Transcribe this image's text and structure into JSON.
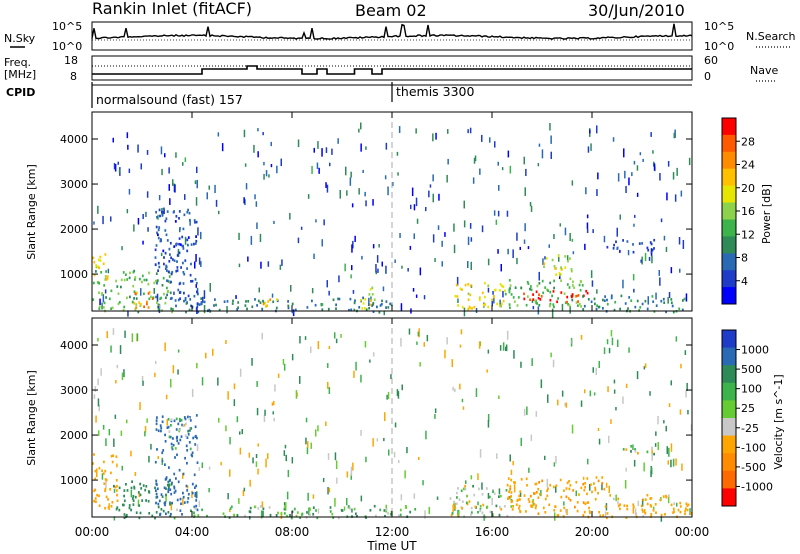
{
  "header": {
    "station": "Rankin Inlet (fitACF)",
    "beam": "Beam 02",
    "date": "30/Jun/2010"
  },
  "panels": {
    "nsky": {
      "label": "N.Sky",
      "left_ticks": [
        "10^5",
        "10^0"
      ],
      "right_ticks": [
        "10^5",
        "10^0"
      ],
      "right_label": "N.Search"
    },
    "freq": {
      "label_line1": "Freq.",
      "label_line2": "[MHz]",
      "left_ticks": [
        "18",
        "8"
      ],
      "right_ticks": [
        "60",
        "0"
      ],
      "right_label": "Nave"
    },
    "cpid": {
      "label": "CPID",
      "segments": [
        {
          "name": "normalsound (fast) 157",
          "start_hour": 0
        },
        {
          "name": "themis 3300",
          "start_hour": 12
        }
      ]
    }
  },
  "chart_data": [
    {
      "type": "heatmap",
      "title": "",
      "quantity": "Power",
      "colorbar_label": "Power [dB]",
      "colorbar_ticks": [
        "28",
        "24",
        "20",
        "16",
        "12",
        "8",
        "4"
      ],
      "colorbar_colors": [
        "#ff0000",
        "#ff5a00",
        "#ff8c00",
        "#ffc000",
        "#e6e600",
        "#8cd24a",
        "#3cb44b",
        "#2e8b57",
        "#2a6ab4",
        "#1e3cc8",
        "#0000ff"
      ],
      "ylabel": "Slant Range [km]",
      "yticks": [
        "1000",
        "2000",
        "3000",
        "4000"
      ],
      "ylim": [
        180,
        4600
      ],
      "xlim": [
        0,
        24
      ],
      "regions": [
        {
          "t0": 0.0,
          "t1": 3.2,
          "r0": 180,
          "r1": 1100,
          "v": 14
        },
        {
          "t0": 0.0,
          "t1": 0.6,
          "r0": 700,
          "r1": 1500,
          "v": 20
        },
        {
          "t0": 1.6,
          "t1": 2.6,
          "r0": 250,
          "r1": 650,
          "v": 24
        },
        {
          "t0": 2.5,
          "t1": 4.2,
          "r0": 250,
          "r1": 2500,
          "v": 6
        },
        {
          "t0": 3.2,
          "t1": 12.0,
          "r0": 180,
          "r1": 500,
          "v": 9
        },
        {
          "t0": 6.8,
          "t1": 7.4,
          "r0": 250,
          "r1": 600,
          "v": 22
        },
        {
          "t0": 10.6,
          "t1": 11.3,
          "r0": 250,
          "r1": 750,
          "v": 18
        },
        {
          "t0": 14.4,
          "t1": 16.5,
          "r0": 250,
          "r1": 850,
          "v": 20
        },
        {
          "t0": 16.5,
          "t1": 19.6,
          "r0": 250,
          "r1": 900,
          "v": 14
        },
        {
          "t0": 17.0,
          "t1": 20.0,
          "r0": 400,
          "r1": 650,
          "v": 29
        },
        {
          "t0": 18.0,
          "t1": 19.2,
          "r0": 900,
          "r1": 1450,
          "v": 18
        },
        {
          "t0": 20.5,
          "t1": 22.5,
          "r0": 1500,
          "r1": 1800,
          "v": 6
        },
        {
          "t0": 19.6,
          "t1": 24.0,
          "r0": 180,
          "r1": 550,
          "v": 10
        }
      ]
    },
    {
      "type": "heatmap",
      "title": "",
      "quantity": "Velocity",
      "colorbar_label": "Velocity [m s^-1]",
      "colorbar_ticks": [
        "1000",
        "500",
        "100",
        "25",
        "-25",
        "-100",
        "-500",
        "-1000"
      ],
      "colorbar_colors": [
        "#1e3cc8",
        "#2a6ab4",
        "#2e8b57",
        "#3cb44b",
        "#66cc33",
        "#c8c8c8",
        "#ffa500",
        "#ff8c00",
        "#ff6a00",
        "#ff0000"
      ],
      "ylabel": "Slant Range [km]",
      "yticks": [
        "1000",
        "2000",
        "3000",
        "4000"
      ],
      "ylim": [
        180,
        4600
      ],
      "xlim": [
        0,
        24
      ],
      "regions": [
        {
          "t0": 0.0,
          "t1": 1.0,
          "r0": 400,
          "r1": 1600,
          "v": -300
        },
        {
          "t0": 0.8,
          "t1": 3.2,
          "r0": 180,
          "r1": 1000,
          "v": 300
        },
        {
          "t0": 2.5,
          "t1": 4.2,
          "r0": 250,
          "r1": 2500,
          "v": 700
        },
        {
          "t0": 3.0,
          "t1": 4.0,
          "r0": 1700,
          "r1": 2400,
          "v": 0
        },
        {
          "t0": 3.2,
          "t1": 13.0,
          "r0": 180,
          "r1": 450,
          "v": 60
        },
        {
          "t0": 14.3,
          "t1": 17.0,
          "r0": 200,
          "r1": 900,
          "v": 0
        },
        {
          "t0": 16.5,
          "t1": 20.5,
          "r0": 200,
          "r1": 1100,
          "v": -400
        },
        {
          "t0": 21.0,
          "t1": 22.5,
          "r0": 1600,
          "r1": 1800,
          "v": 0
        },
        {
          "t0": 20.5,
          "t1": 24.0,
          "r0": 180,
          "r1": 700,
          "v": -200
        }
      ]
    }
  ],
  "xaxis": {
    "ticks": [
      "00:00",
      "04:00",
      "08:00",
      "12:00",
      "16:00",
      "20:00",
      "00:00"
    ],
    "label": "Time UT"
  }
}
